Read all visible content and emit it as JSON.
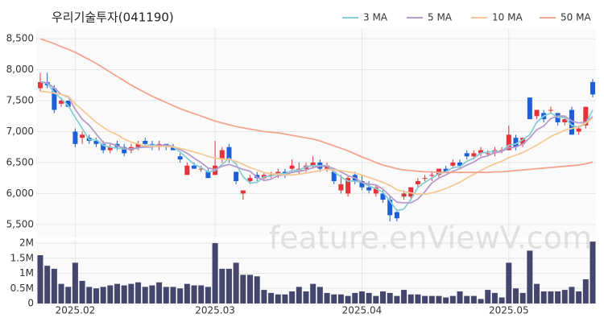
{
  "chart_data": [
    {
      "type": "candlestick",
      "title": "우리기술투자(041190)",
      "watermark": "feature.enViewV.com",
      "categories": [
        null,
        null,
        null,
        null,
        null,
        "2025.02",
        null,
        null,
        null,
        null,
        null,
        null,
        null,
        null,
        null,
        null,
        null,
        null,
        null,
        null,
        null,
        null,
        null,
        null,
        null,
        "2025.03",
        null,
        null,
        null,
        null,
        null,
        null,
        null,
        null,
        null,
        null,
        null,
        null,
        null,
        null,
        null,
        null,
        null,
        null,
        null,
        null,
        "2025.04",
        null,
        null,
        null,
        null,
        null,
        null,
        null,
        null,
        null,
        null,
        null,
        null,
        null,
        null,
        null,
        null,
        null,
        null,
        null,
        null,
        "2025.05",
        null,
        null,
        null,
        null,
        null,
        null,
        null,
        null,
        null,
        null,
        null,
        null
      ],
      "open": [
        7700,
        7800,
        7700,
        7450,
        7500,
        7000,
        6900,
        6900,
        6850,
        6800,
        6700,
        6800,
        6750,
        6700,
        6750,
        6850,
        6800,
        6750,
        6800,
        6750,
        6600,
        6300,
        6450,
        6400,
        6350,
        6300,
        6550,
        6750,
        6350,
        6000,
        6200,
        6300,
        6250,
        6300,
        6300,
        6350,
        6400,
        6350,
        6400,
        6450,
        6500,
        6400,
        6350,
        6050,
        6000,
        6300,
        6200,
        6100,
        6000,
        6000,
        5900,
        5700,
        5950,
        5950,
        6150,
        6250,
        6300,
        6300,
        6400,
        6450,
        6500,
        6650,
        6600,
        6650,
        6650,
        6650,
        6700,
        6700,
        6900,
        6800,
        7550,
        7250,
        7300,
        7350,
        7300,
        7150,
        7350,
        7000,
        7100,
        7800
      ],
      "high": [
        7950,
        7950,
        7750,
        7550,
        7500,
        7050,
        7000,
        6950,
        6900,
        6850,
        6800,
        6850,
        6800,
        6800,
        6850,
        6900,
        6850,
        6850,
        6800,
        6800,
        6650,
        6500,
        6500,
        6450,
        6400,
        6850,
        6750,
        6800,
        6350,
        6050,
        6300,
        6350,
        6350,
        6350,
        6400,
        6400,
        6550,
        6500,
        6500,
        6600,
        6550,
        6500,
        6400,
        6300,
        6300,
        6350,
        6300,
        6200,
        6150,
        6050,
        5950,
        5750,
        6050,
        6100,
        6250,
        6300,
        6350,
        6400,
        6450,
        6550,
        6550,
        6700,
        6700,
        6750,
        6700,
        6750,
        6750,
        7100,
        6950,
        6900,
        7550,
        7350,
        7350,
        7400,
        7300,
        7250,
        7400,
        7100,
        7400,
        7850
      ],
      "low": [
        7650,
        7700,
        7300,
        7400,
        7400,
        6750,
        6800,
        6800,
        6750,
        6650,
        6650,
        6700,
        6600,
        6650,
        6700,
        6750,
        6700,
        6700,
        6700,
        6700,
        6500,
        6300,
        6400,
        6350,
        6250,
        6300,
        6500,
        6500,
        6150,
        5900,
        6150,
        6200,
        6200,
        6250,
        6250,
        6250,
        6350,
        6300,
        6350,
        6400,
        6350,
        6350,
        6150,
        6000,
        5950,
        6150,
        6050,
        6000,
        5950,
        5850,
        5550,
        5550,
        5900,
        5900,
        6100,
        6200,
        6200,
        6250,
        6350,
        6400,
        6400,
        6550,
        6550,
        6600,
        6600,
        6600,
        6650,
        6700,
        6700,
        6750,
        7200,
        7200,
        7150,
        7300,
        7100,
        7100,
        6950,
        6950,
        7050,
        7550
      ],
      "close": [
        7800,
        7750,
        7350,
        7500,
        7400,
        6800,
        6950,
        6850,
        6800,
        6700,
        6750,
        6750,
        6650,
        6750,
        6800,
        6800,
        6750,
        6800,
        6750,
        6700,
        6550,
        6450,
        6400,
        6400,
        6250,
        6450,
        6700,
        6550,
        6200,
        6050,
        6250,
        6250,
        6300,
        6300,
        6350,
        6300,
        6450,
        6400,
        6450,
        6500,
        6400,
        6450,
        6200,
        6150,
        6250,
        6200,
        6100,
        6050,
        6100,
        5900,
        5650,
        5600,
        6000,
        6100,
        6200,
        6250,
        6300,
        6400,
        6350,
        6500,
        6450,
        6600,
        6650,
        6700,
        6650,
        6700,
        6700,
        6950,
        6750,
        6900,
        7200,
        7350,
        7200,
        7350,
        7150,
        7200,
        6950,
        7050,
        7400,
        7600
      ],
      "up_color": "#e5323b",
      "down_color": "#1d5fd8",
      "series": [
        {
          "name": "3 MA",
          "color": "#86cfd6",
          "values": [
            7800,
            7780,
            7630,
            7530,
            7420,
            7230,
            7050,
            6870,
            6870,
            6780,
            6750,
            6730,
            6720,
            6720,
            6730,
            6780,
            6780,
            6780,
            6770,
            6750,
            6670,
            6570,
            6470,
            6420,
            6350,
            6370,
            6470,
            6570,
            6480,
            6270,
            6170,
            6180,
            6270,
            6280,
            6320,
            6320,
            6370,
            6380,
            6430,
            6450,
            6450,
            6450,
            6350,
            6270,
            6200,
            6200,
            6180,
            6120,
            6080,
            6020,
            5880,
            5720,
            5750,
            5900,
            6100,
            6180,
            6250,
            6320,
            6350,
            6420,
            6430,
            6520,
            6570,
            6650,
            6670,
            6680,
            6680,
            6780,
            6800,
            6870,
            6950,
            7150,
            7250,
            7300,
            7230,
            7230,
            7100,
            7070,
            7130,
            7350
          ]
        },
        {
          "name": "5 MA",
          "color": "#b59ccb",
          "values": [
            7800,
            7790,
            7700,
            7600,
            7560,
            7360,
            7200,
            7100,
            6960,
            6820,
            6810,
            6770,
            6730,
            6720,
            6740,
            6750,
            6750,
            6780,
            6780,
            6760,
            6710,
            6650,
            6570,
            6500,
            6410,
            6390,
            6440,
            6470,
            6430,
            6390,
            6360,
            6260,
            6210,
            6230,
            6290,
            6300,
            6340,
            6360,
            6380,
            6420,
            6440,
            6440,
            6400,
            6350,
            6290,
            6250,
            6180,
            6150,
            6140,
            6070,
            5960,
            5860,
            5850,
            5850,
            5910,
            6030,
            6170,
            6250,
            6300,
            6360,
            6400,
            6460,
            6510,
            6580,
            6610,
            6660,
            6680,
            6740,
            6750,
            6800,
            6900,
            7030,
            7090,
            7210,
            7250,
            7250,
            7170,
            7140,
            7150,
            7240
          ]
        },
        {
          "name": "10 MA",
          "color": "#f3c996",
          "values": [
            7650,
            7640,
            7620,
            7600,
            7570,
            7450,
            7350,
            7250,
            7150,
            7070,
            7000,
            6950,
            6880,
            6830,
            6800,
            6770,
            6760,
            6760,
            6760,
            6750,
            6730,
            6700,
            6670,
            6640,
            6600,
            6570,
            6560,
            6550,
            6520,
            6470,
            6420,
            6380,
            6340,
            6320,
            6310,
            6300,
            6300,
            6310,
            6330,
            6350,
            6370,
            6390,
            6380,
            6370,
            6350,
            6330,
            6300,
            6260,
            6220,
            6180,
            6130,
            6060,
            6030,
            6010,
            5990,
            5990,
            6010,
            6040,
            6080,
            6130,
            6180,
            6250,
            6310,
            6370,
            6430,
            6480,
            6520,
            6580,
            6620,
            6660,
            6720,
            6780,
            6850,
            6920,
            6970,
            7020,
            7050,
            7080,
            7140,
            7220
          ]
        },
        {
          "name": "50 MA",
          "color": "#f3a48e",
          "values": [
            8500,
            8460,
            8420,
            8370,
            8330,
            8280,
            8220,
            8160,
            8100,
            8030,
            7960,
            7890,
            7820,
            7750,
            7690,
            7630,
            7570,
            7520,
            7470,
            7420,
            7370,
            7330,
            7290,
            7250,
            7210,
            7170,
            7140,
            7110,
            7080,
            7060,
            7040,
            7020,
            7000,
            6990,
            6980,
            6960,
            6940,
            6920,
            6900,
            6880,
            6850,
            6810,
            6770,
            6730,
            6690,
            6640,
            6590,
            6550,
            6500,
            6460,
            6430,
            6400,
            6380,
            6370,
            6360,
            6350,
            6350,
            6340,
            6340,
            6340,
            6340,
            6340,
            6340,
            6340,
            6340,
            6350,
            6350,
            6360,
            6370,
            6380,
            6390,
            6400,
            6410,
            6420,
            6430,
            6440,
            6450,
            6460,
            6480,
            6510
          ]
        }
      ],
      "ylim": [
        5290,
        8670
      ],
      "yticks": [
        {
          "value": 5500,
          "label": "5,500"
        },
        {
          "value": 6000,
          "label": "6,000"
        },
        {
          "value": 6500,
          "label": "6,500"
        },
        {
          "value": 7000,
          "label": "7,000"
        },
        {
          "value": 7500,
          "label": "7,500"
        },
        {
          "value": 8000,
          "label": "8,000"
        },
        {
          "value": 8500,
          "label": "8,500"
        }
      ],
      "grid": true,
      "legend": "top-right"
    },
    {
      "type": "bar",
      "color": "#44466e",
      "values": [
        1600000,
        1250000,
        1150000,
        650000,
        550000,
        1350000,
        750000,
        550000,
        500000,
        550000,
        600000,
        650000,
        600000,
        650000,
        700000,
        550000,
        600000,
        700000,
        550000,
        550000,
        500000,
        650000,
        600000,
        600000,
        550000,
        2000000,
        1150000,
        1150000,
        1350000,
        950000,
        950000,
        900000,
        450000,
        350000,
        300000,
        300000,
        400000,
        550000,
        400000,
        650000,
        550000,
        350000,
        300000,
        300000,
        250000,
        350000,
        400000,
        350000,
        250000,
        400000,
        350000,
        250000,
        450000,
        300000,
        300000,
        250000,
        250000,
        250000,
        200000,
        250000,
        400000,
        250000,
        250000,
        150000,
        450000,
        350000,
        200000,
        1350000,
        500000,
        350000,
        1750000,
        650000,
        400000,
        400000,
        400000,
        450000,
        550000,
        400000,
        800000,
        2050000
      ],
      "ylim": [
        0,
        2080000
      ],
      "yticks": [
        0,
        {
          "value": 500000,
          "label": "0.5M"
        },
        {
          "value": 1000000,
          "label": "1M"
        },
        {
          "value": 1500000,
          "label": "1.5M"
        },
        {
          "value": 2000000,
          "label": "2M"
        }
      ]
    }
  ]
}
